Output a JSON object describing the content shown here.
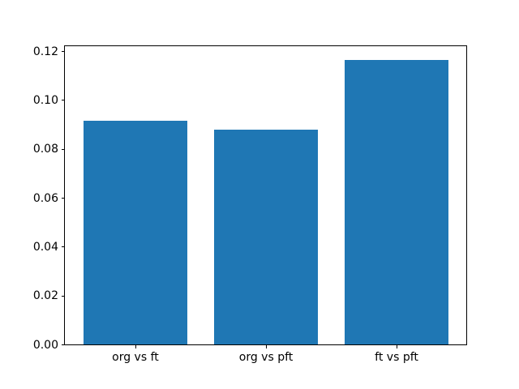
{
  "chart_data": {
    "type": "bar",
    "title": "",
    "xlabel": "",
    "ylabel": "",
    "categories": [
      "org vs ft",
      "org vs pft",
      "ft vs pft"
    ],
    "values": [
      0.0916,
      0.0877,
      0.1164
    ],
    "bar_color": "#1f77b4",
    "bar_width": 0.8,
    "xlim": [
      -0.54,
      2.54
    ],
    "ylim": [
      0,
      0.122
    ],
    "ytick_values": [
      0.0,
      0.02,
      0.04,
      0.06,
      0.08,
      0.1,
      0.12
    ],
    "ytick_labels": [
      "0.00",
      "0.02",
      "0.04",
      "0.06",
      "0.08",
      "0.10",
      "0.12"
    ],
    "grid": false,
    "legend": "none",
    "spine_color": "#000000",
    "background_color": "#ffffff"
  }
}
